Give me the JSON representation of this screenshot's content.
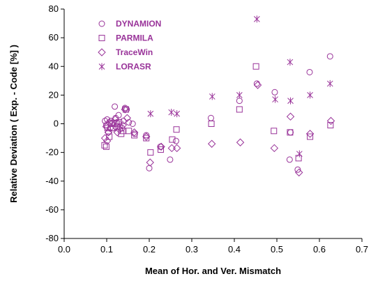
{
  "chart_data": {
    "type": "scatter",
    "xlabel": "Mean of Hor. and Ver. Mismatch",
    "ylabel": "Relative Deviation ( Exp. - Code  [%] )",
    "xlim": [
      0.0,
      0.7
    ],
    "ylim": [
      -80,
      80
    ],
    "x_ticks": [
      "0.0",
      "0.1",
      "0.2",
      "0.3",
      "0.4",
      "0.5",
      "0.6",
      "0.7"
    ],
    "y_ticks": [
      "-80",
      "-60",
      "-40",
      "-20",
      "0",
      "20",
      "40",
      "60",
      "80"
    ],
    "grid": false,
    "legend_position": "top-left",
    "marker_color": "#993399",
    "series": [
      {
        "name": "DYNAMION",
        "marker": "circle",
        "points": [
          [
            0.096,
            2
          ],
          [
            0.099,
            -1
          ],
          [
            0.101,
            3
          ],
          [
            0.104,
            -6
          ],
          [
            0.106,
            1
          ],
          [
            0.11,
            2
          ],
          [
            0.115,
            -3
          ],
          [
            0.119,
            12
          ],
          [
            0.121,
            4
          ],
          [
            0.124,
            1
          ],
          [
            0.128,
            6
          ],
          [
            0.131,
            -2
          ],
          [
            0.136,
            -3
          ],
          [
            0.139,
            2
          ],
          [
            0.143,
            11
          ],
          [
            0.147,
            10
          ],
          [
            0.152,
            1
          ],
          [
            0.161,
            0
          ],
          [
            0.166,
            -7
          ],
          [
            0.193,
            -8
          ],
          [
            0.2,
            -31
          ],
          [
            0.226,
            -16
          ],
          [
            0.249,
            -25
          ],
          [
            0.263,
            -12
          ],
          [
            0.345,
            4
          ],
          [
            0.412,
            16
          ],
          [
            0.453,
            28
          ],
          [
            0.495,
            22
          ],
          [
            0.53,
            -25
          ],
          [
            0.532,
            -6
          ],
          [
            0.549,
            -32
          ],
          [
            0.577,
            36
          ],
          [
            0.625,
            47
          ]
        ]
      },
      {
        "name": "PARMILA",
        "marker": "square",
        "points": [
          [
            0.095,
            -15
          ],
          [
            0.099,
            -16
          ],
          [
            0.102,
            -3
          ],
          [
            0.106,
            -9
          ],
          [
            0.111,
            0
          ],
          [
            0.115,
            -3
          ],
          [
            0.12,
            0
          ],
          [
            0.124,
            -2
          ],
          [
            0.129,
            1
          ],
          [
            0.134,
            -7
          ],
          [
            0.138,
            -5
          ],
          [
            0.145,
            10
          ],
          [
            0.152,
            -5
          ],
          [
            0.165,
            -8
          ],
          [
            0.193,
            -10
          ],
          [
            0.203,
            -20
          ],
          [
            0.227,
            -18
          ],
          [
            0.254,
            -11
          ],
          [
            0.264,
            -4
          ],
          [
            0.346,
            0
          ],
          [
            0.412,
            10
          ],
          [
            0.451,
            40
          ],
          [
            0.493,
            -5
          ],
          [
            0.531,
            -6
          ],
          [
            0.551,
            -24
          ],
          [
            0.578,
            -9
          ],
          [
            0.626,
            -1
          ]
        ]
      },
      {
        "name": "TraceWin",
        "marker": "diamond",
        "points": [
          [
            0.096,
            -10
          ],
          [
            0.099,
            -2
          ],
          [
            0.101,
            -12
          ],
          [
            0.104,
            -6
          ],
          [
            0.108,
            -3
          ],
          [
            0.115,
            1
          ],
          [
            0.12,
            3
          ],
          [
            0.125,
            -6
          ],
          [
            0.13,
            -4
          ],
          [
            0.138,
            -1
          ],
          [
            0.143,
            10
          ],
          [
            0.148,
            4
          ],
          [
            0.165,
            -6
          ],
          [
            0.193,
            -9
          ],
          [
            0.202,
            -27
          ],
          [
            0.228,
            -16
          ],
          [
            0.253,
            -17
          ],
          [
            0.265,
            -17
          ],
          [
            0.347,
            -14
          ],
          [
            0.414,
            -13
          ],
          [
            0.455,
            27
          ],
          [
            0.494,
            -17
          ],
          [
            0.532,
            5
          ],
          [
            0.552,
            -34
          ],
          [
            0.578,
            -7
          ],
          [
            0.627,
            2
          ]
        ]
      },
      {
        "name": "LORASR",
        "marker": "asterisk",
        "points": [
          [
            0.203,
            7
          ],
          [
            0.252,
            8
          ],
          [
            0.265,
            7
          ],
          [
            0.348,
            19
          ],
          [
            0.412,
            20
          ],
          [
            0.453,
            73
          ],
          [
            0.496,
            17
          ],
          [
            0.531,
            43
          ],
          [
            0.532,
            16
          ],
          [
            0.553,
            -21
          ],
          [
            0.578,
            20
          ],
          [
            0.625,
            28
          ]
        ]
      }
    ]
  }
}
